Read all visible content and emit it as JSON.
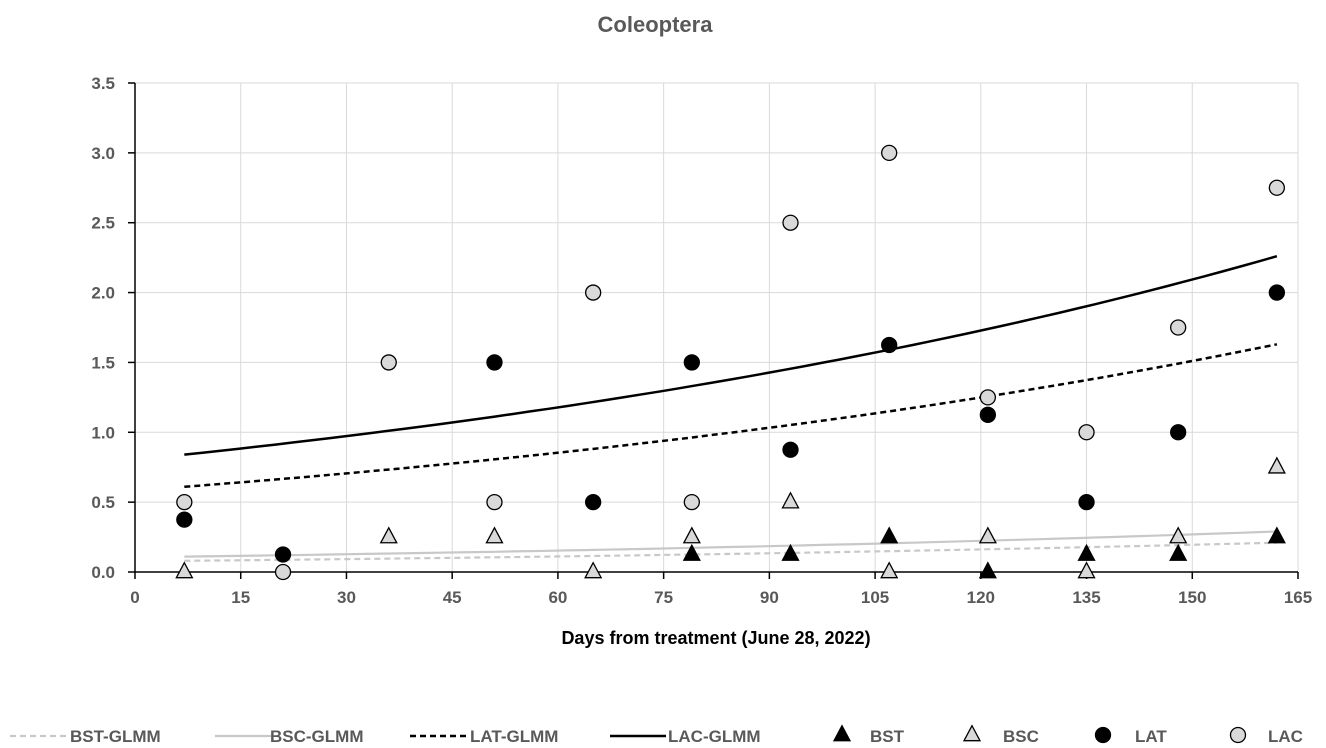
{
  "chart_data": {
    "type": "scatter",
    "title": "Coleoptera",
    "xlabel": "Days from treatment (June 28, 2022)",
    "ylabel": "",
    "xlim": [
      0,
      165
    ],
    "ylim": [
      0,
      3.5
    ],
    "xticks": [
      0,
      15,
      30,
      45,
      60,
      75,
      90,
      105,
      120,
      135,
      150,
      165
    ],
    "yticks": [
      0.0,
      0.5,
      1.0,
      1.5,
      2.0,
      2.5,
      3.0,
      3.5
    ],
    "ytick_labels": [
      "0.0",
      "0.5",
      "1.0",
      "1.5",
      "2.0",
      "2.5",
      "3.0",
      "3.5"
    ],
    "grid": true,
    "legend_position": "bottom",
    "lines": [
      {
        "name": "BST-GLMM",
        "style": "dashed",
        "color": "#c8c8c8",
        "x": [
          7,
          162
        ],
        "y0": 0.08,
        "y1": 0.21
      },
      {
        "name": "BSC-GLMM",
        "style": "solid",
        "color": "#c8c8c8",
        "x": [
          7,
          162
        ],
        "y0": 0.11,
        "y1": 0.29
      },
      {
        "name": "LAT-GLMM",
        "style": "dashed",
        "color": "#000000",
        "x": [
          7,
          162
        ],
        "y0": 0.61,
        "y1": 1.63
      },
      {
        "name": "LAC-GLMM",
        "style": "solid",
        "color": "#000000",
        "x": [
          7,
          162
        ],
        "y0": 0.84,
        "y1": 2.26
      }
    ],
    "series": [
      {
        "name": "BST",
        "marker": "triangle",
        "fill": "#000000",
        "x": [
          79,
          93,
          107,
          121,
          135,
          148,
          162
        ],
        "y": [
          0.125,
          0.125,
          0.25,
          0.0,
          0.125,
          0.125,
          0.25
        ]
      },
      {
        "name": "BSC",
        "marker": "triangle",
        "fill": "#d9d9d9",
        "x": [
          7,
          36,
          51,
          65,
          79,
          93,
          107,
          121,
          135,
          148,
          162
        ],
        "y": [
          0.0,
          0.25,
          0.25,
          0.0,
          0.25,
          0.5,
          0.0,
          0.25,
          0.0,
          0.25,
          0.75
        ]
      },
      {
        "name": "LAT",
        "marker": "circle",
        "fill": "#000000",
        "x": [
          7,
          21,
          51,
          65,
          79,
          93,
          107,
          121,
          135,
          148,
          162
        ],
        "y": [
          0.375,
          0.125,
          1.5,
          0.5,
          1.5,
          0.875,
          1.625,
          1.125,
          0.5,
          1.0,
          2.0
        ]
      },
      {
        "name": "LAC",
        "marker": "circle",
        "fill": "#d9d9d9",
        "x": [
          7,
          21,
          36,
          51,
          65,
          79,
          93,
          107,
          121,
          135,
          148,
          162
        ],
        "y": [
          0.5,
          0.0,
          1.5,
          0.5,
          2.0,
          0.5,
          2.5,
          3.0,
          1.25,
          1.0,
          1.75,
          2.75
        ]
      }
    ],
    "legend": [
      {
        "label": "BST-GLMM",
        "kind": "line",
        "ref": "BST-GLMM"
      },
      {
        "label": "BSC-GLMM",
        "kind": "line",
        "ref": "BSC-GLMM"
      },
      {
        "label": "LAT-GLMM",
        "kind": "line",
        "ref": "LAT-GLMM"
      },
      {
        "label": "LAC-GLMM",
        "kind": "line",
        "ref": "LAC-GLMM"
      },
      {
        "label": "BST",
        "kind": "marker",
        "ref": "BST"
      },
      {
        "label": "BSC",
        "kind": "marker",
        "ref": "BSC"
      },
      {
        "label": "LAT",
        "kind": "marker",
        "ref": "LAT"
      },
      {
        "label": "LAC",
        "kind": "marker",
        "ref": "LAC"
      }
    ]
  }
}
